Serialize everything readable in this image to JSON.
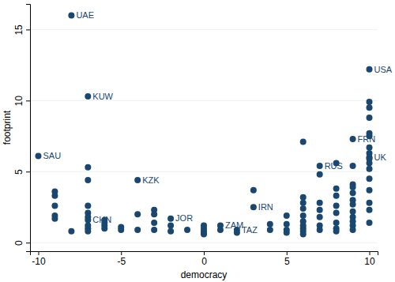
{
  "chart_data": {
    "type": "scatter",
    "x_label": "democracy",
    "y_label": "footprint",
    "xlim": [
      -10.5,
      10.5
    ],
    "xticks": [
      -10,
      -5,
      0,
      5,
      10
    ],
    "ylim": [
      -0.6,
      16.8
    ],
    "yticks": [
      0,
      5,
      10,
      15
    ],
    "grid": true,
    "marker": "circle",
    "color": "#1a476f",
    "x": [
      -10,
      -9,
      -9,
      -9,
      -9,
      -9,
      -8,
      -8,
      -7,
      -7,
      -7,
      -7,
      -7,
      -7,
      -7,
      -7,
      -7,
      -7,
      -6,
      -6,
      -6,
      -6,
      -5,
      -5,
      -4,
      -4,
      -4,
      -3,
      -3,
      -3,
      -3,
      -2,
      -2,
      -2,
      -1,
      0,
      0,
      0,
      0,
      0,
      1,
      1,
      2,
      2,
      3,
      3,
      4,
      4,
      5,
      5,
      5,
      5,
      6,
      6,
      6,
      6,
      6,
      6,
      6,
      6,
      6,
      6,
      7,
      7,
      7,
      7,
      7,
      7,
      7,
      8,
      8,
      8,
      8,
      8,
      8,
      8,
      8,
      9,
      9,
      9,
      9,
      9,
      9,
      9,
      9,
      9,
      9,
      9,
      9,
      10,
      10,
      10,
      10,
      10,
      10,
      10,
      10,
      10,
      10,
      10,
      10,
      10,
      10,
      10,
      10,
      10
    ],
    "y": [
      6.1,
      3.6,
      3.3,
      2.6,
      1.9,
      1.7,
      16.0,
      0.8,
      10.3,
      5.3,
      4.4,
      2.6,
      2.1,
      1.8,
      1.6,
      1.2,
      1.0,
      0.8,
      1.6,
      1.4,
      1.2,
      1.0,
      1.1,
      0.9,
      4.4,
      2.0,
      0.9,
      2.3,
      2.0,
      1.4,
      0.9,
      1.7,
      1.2,
      0.8,
      0.9,
      1.2,
      1.0,
      0.8,
      0.7,
      0.6,
      1.2,
      0.9,
      0.9,
      0.7,
      3.7,
      2.5,
      1.3,
      0.9,
      1.9,
      1.3,
      0.9,
      0.7,
      7.1,
      3.2,
      2.8,
      2.4,
      1.9,
      1.5,
      1.2,
      1.0,
      0.8,
      0.6,
      5.4,
      4.8,
      2.8,
      2.3,
      1.8,
      1.2,
      0.9,
      5.6,
      3.8,
      3.3,
      2.6,
      2.1,
      1.4,
      1.0,
      0.8,
      7.3,
      5.4,
      4.1,
      3.9,
      3.5,
      3.0,
      2.7,
      2.2,
      1.8,
      1.5,
      1.2,
      0.9,
      12.2,
      9.9,
      9.5,
      8.8,
      7.7,
      7.5,
      6.7,
      6.3,
      6.0,
      5.9,
      5.6,
      5.2,
      4.5,
      3.7,
      2.8,
      2.3,
      1.4
    ],
    "labels": [
      "SAU",
      null,
      null,
      null,
      null,
      null,
      "UAE",
      null,
      "KUW",
      null,
      null,
      null,
      null,
      null,
      "CHN",
      null,
      null,
      null,
      null,
      null,
      null,
      null,
      null,
      null,
      "KZK",
      null,
      null,
      null,
      null,
      null,
      null,
      "JOR",
      null,
      null,
      null,
      null,
      null,
      null,
      null,
      null,
      "ZAM",
      null,
      "TAZ",
      null,
      null,
      "IRN",
      null,
      null,
      null,
      null,
      null,
      null,
      null,
      null,
      null,
      null,
      null,
      null,
      null,
      null,
      null,
      null,
      "RUS",
      null,
      null,
      null,
      null,
      null,
      null,
      null,
      null,
      null,
      null,
      null,
      null,
      null,
      null,
      "FRN",
      null,
      null,
      null,
      null,
      null,
      null,
      null,
      null,
      null,
      null,
      null,
      "USA",
      null,
      null,
      null,
      null,
      null,
      null,
      null,
      "UK",
      null,
      null,
      null,
      null,
      null,
      null,
      null,
      null
    ]
  }
}
